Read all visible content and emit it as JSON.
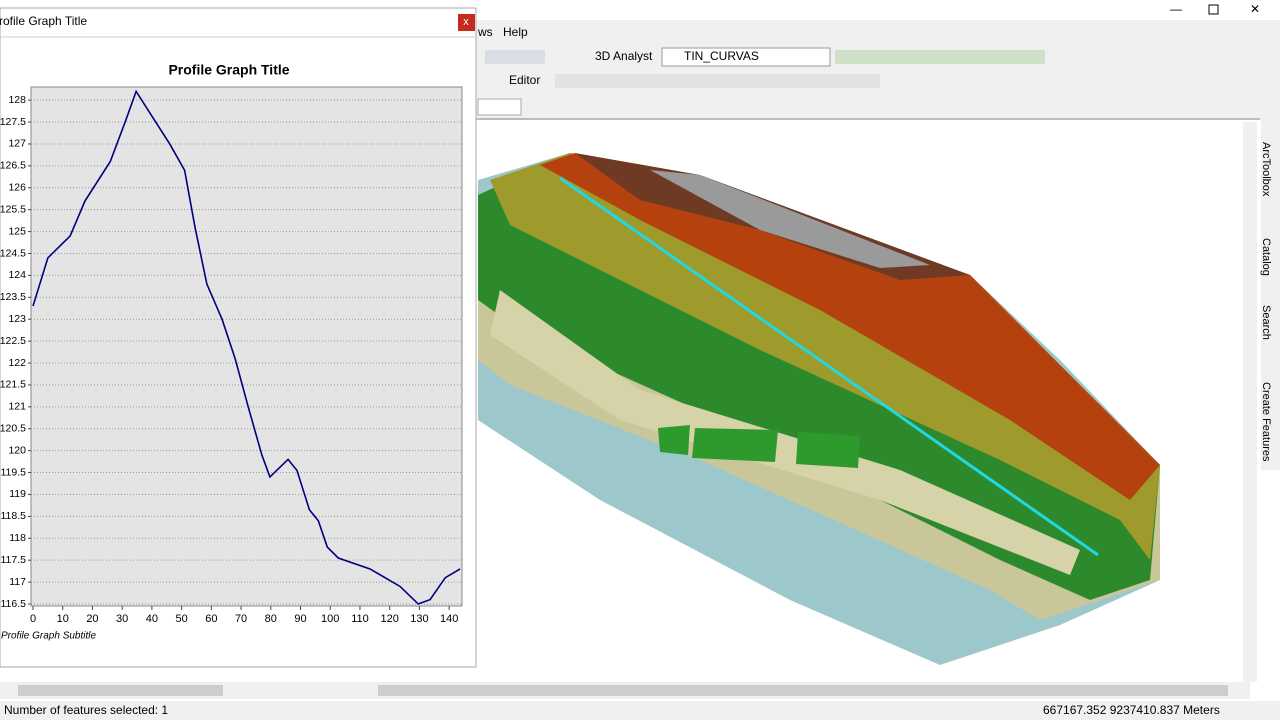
{
  "window": {
    "menu": [
      "ws",
      "Help"
    ],
    "toolbar": {
      "analyst": "3D Analyst",
      "layer": "TIN_CURVAS",
      "editor": "Editor"
    },
    "side_tabs": [
      "ArcToolbox",
      "Catalog",
      "Search",
      "Create Features"
    ],
    "status": {
      "selection": "Number of features selected: 1",
      "coordinates": "667167.352  9237410.837 Meters"
    }
  },
  "profile_window": {
    "title": "Profile Graph Title",
    "close": "x"
  },
  "chart_data": {
    "type": "line",
    "title": "Profile Graph Title",
    "subtitle": "Profile Graph Subtitle",
    "x": [
      0,
      5,
      12.5,
      17.5,
      26,
      31,
      34.7,
      39.4,
      46,
      51,
      54.5,
      58.5,
      63.6,
      68,
      72.4,
      77,
      79.7,
      85.8,
      88.8,
      93,
      96,
      99,
      102.7,
      113.4,
      123.5,
      129.6,
      133.6,
      138.7,
      143.7
    ],
    "values": [
      123.3,
      124.4,
      124.9,
      125.7,
      126.6,
      127.5,
      128.2,
      127.7,
      127,
      126.4,
      125.1,
      123.8,
      123,
      122.1,
      121,
      119.9,
      119.4,
      119.8,
      119.55,
      118.65,
      118.4,
      117.8,
      117.55,
      117.3,
      116.9,
      116.5,
      116.6,
      117.1,
      117.3
    ],
    "color": "#000080",
    "xlim": [
      0,
      145
    ],
    "xticks": [
      0,
      10,
      20,
      30,
      40,
      50,
      60,
      70,
      80,
      90,
      100,
      110,
      120,
      130,
      140
    ],
    "ylim": [
      116.5,
      128.3
    ],
    "yticks": [
      116.5,
      117,
      117.5,
      118,
      118.5,
      119,
      119.5,
      120,
      120.5,
      121,
      121.5,
      122,
      122.5,
      123,
      123.5,
      124,
      124.5,
      125,
      125.5,
      126,
      126.5,
      127,
      127.5,
      128
    ],
    "grid": true
  }
}
